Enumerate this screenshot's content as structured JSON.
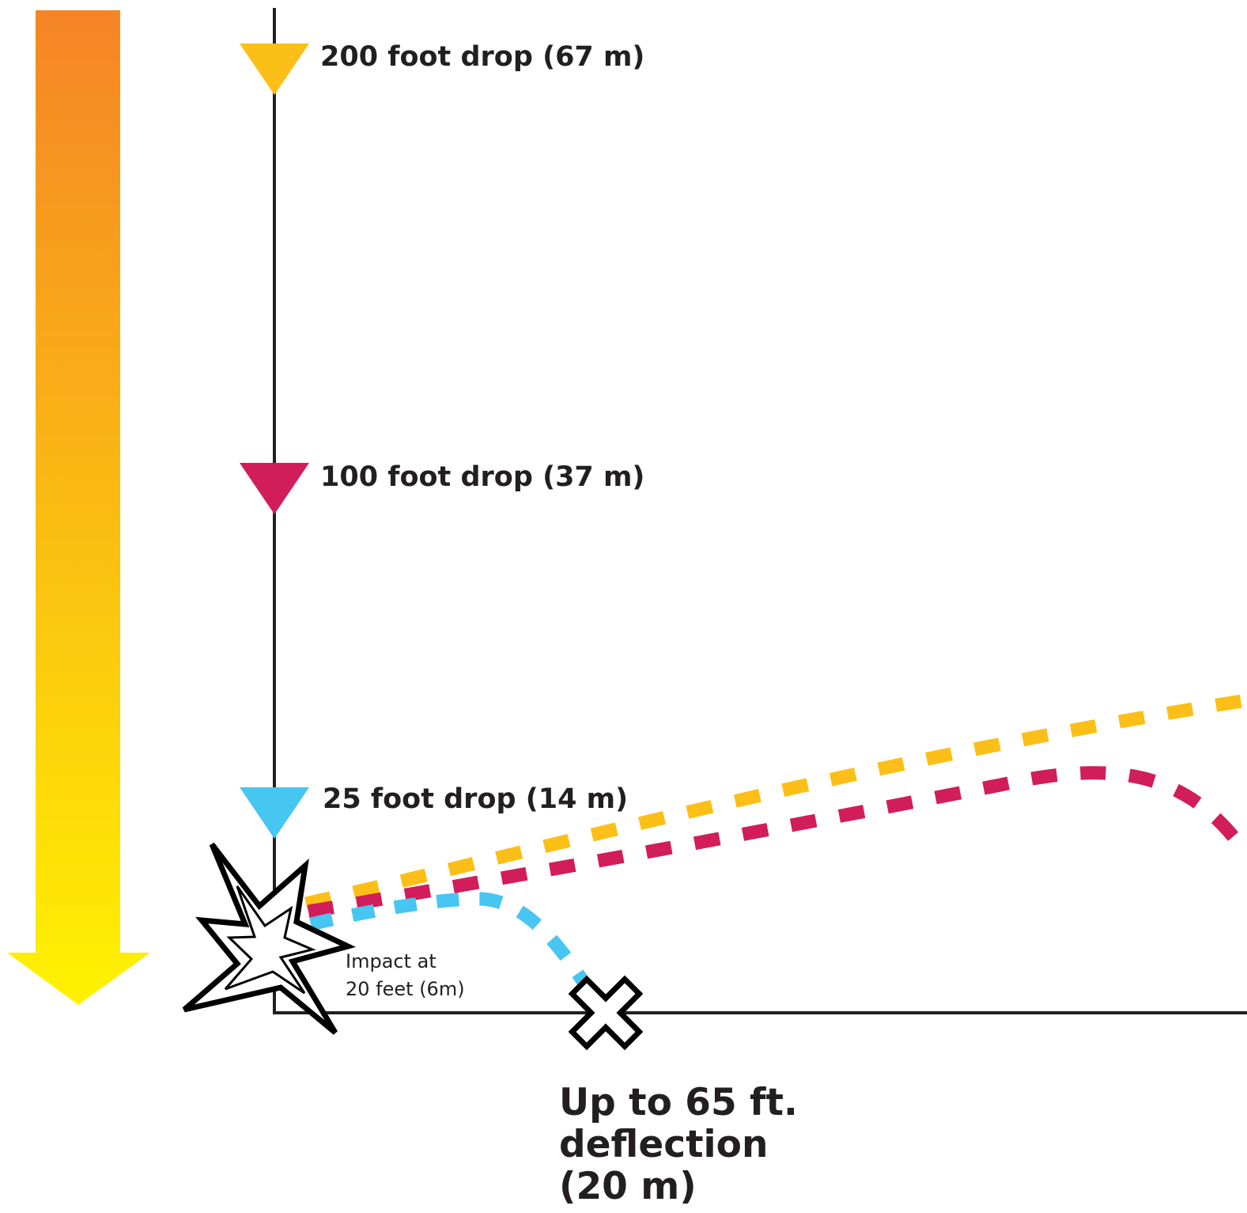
{
  "colors": {
    "gradient_top": "#f58426",
    "gradient_bottom": "#fff200",
    "axis": "#231f20",
    "drop_200": "#fcbf17",
    "drop_100": "#d11d5a",
    "drop_25": "#47c6f1"
  },
  "drops": {
    "drop_200": {
      "label": "200 foot drop (67 m)",
      "color": "#fcbf17"
    },
    "drop_100": {
      "label": "100 foot drop (37 m)",
      "color": "#d11d5a"
    },
    "drop_25": {
      "label": "25 foot drop (14 m)",
      "color": "#47c6f1"
    }
  },
  "impact": {
    "icon": "explosion-burst-icon",
    "line1": "Impact at",
    "line2": "20 feet (6m)"
  },
  "landing": {
    "icon": "x-mark-icon"
  },
  "deflection": {
    "line1": "Up to 65 ft.",
    "line2": "deflection",
    "line3": "(20 m)"
  },
  "height_arrow": {
    "icon": "down-arrow-gradient-icon"
  }
}
